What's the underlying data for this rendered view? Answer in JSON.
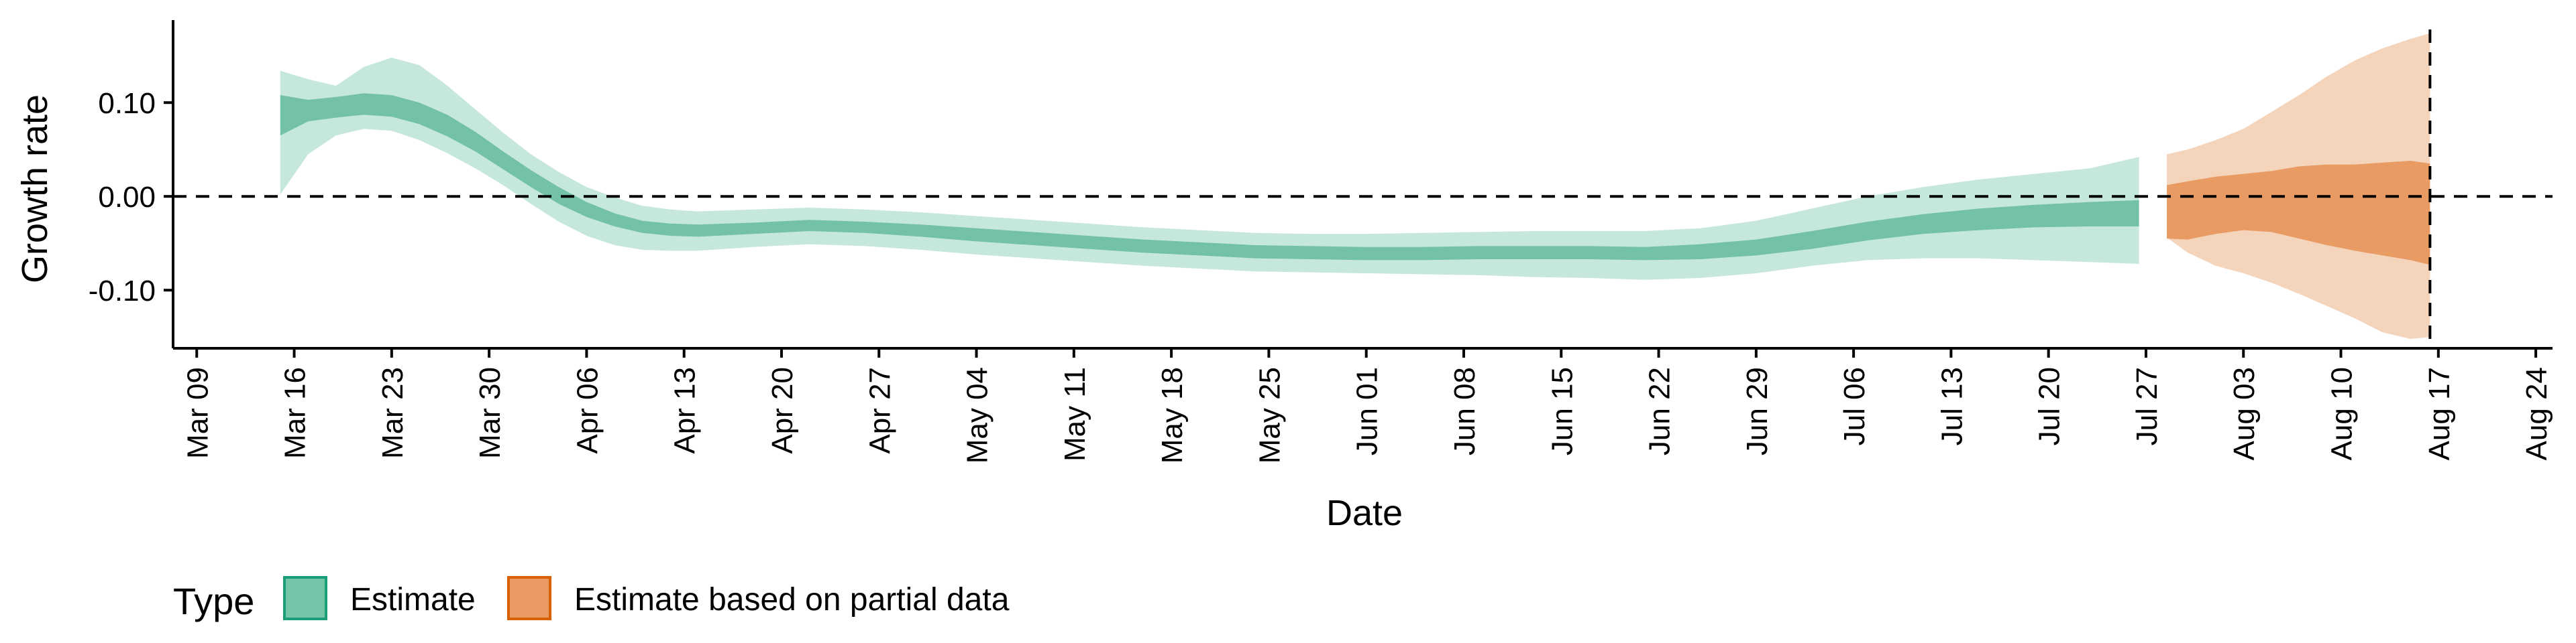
{
  "chart_data": {
    "type": "area",
    "xlabel": "Date",
    "ylabel": "Growth rate",
    "y_ticks": [
      {
        "value": 0.1,
        "label": "0.10"
      },
      {
        "value": 0.0,
        "label": "0.00"
      },
      {
        "value": -0.1,
        "label": "-0.10"
      }
    ],
    "ylim": [
      -0.162,
      0.188
    ],
    "x_ticks": [
      {
        "day": 0,
        "label": "Mar 09"
      },
      {
        "day": 7,
        "label": "Mar 16"
      },
      {
        "day": 14,
        "label": "Mar 23"
      },
      {
        "day": 21,
        "label": "Mar 30"
      },
      {
        "day": 28,
        "label": "Apr 06"
      },
      {
        "day": 35,
        "label": "Apr 13"
      },
      {
        "day": 42,
        "label": "Apr 20"
      },
      {
        "day": 49,
        "label": "Apr 27"
      },
      {
        "day": 56,
        "label": "May 04"
      },
      {
        "day": 63,
        "label": "May 11"
      },
      {
        "day": 70,
        "label": "May 18"
      },
      {
        "day": 77,
        "label": "May 25"
      },
      {
        "day": 84,
        "label": "Jun 01"
      },
      {
        "day": 91,
        "label": "Jun 08"
      },
      {
        "day": 98,
        "label": "Jun 15"
      },
      {
        "day": 105,
        "label": "Jun 22"
      },
      {
        "day": 112,
        "label": "Jun 29"
      },
      {
        "day": 119,
        "label": "Jul 06"
      },
      {
        "day": 126,
        "label": "Jul 13"
      },
      {
        "day": 133,
        "label": "Jul 20"
      },
      {
        "day": 140,
        "label": "Jul 27"
      },
      {
        "day": 147,
        "label": "Aug 03"
      },
      {
        "day": 154,
        "label": "Aug 10"
      },
      {
        "day": 161,
        "label": "Aug 17"
      },
      {
        "day": 168,
        "label": "Aug 24"
      }
    ],
    "xlim": [
      -1.7,
      169.2
    ],
    "reference_line_y": 0,
    "vertical_line_day": 160.4,
    "legend": {
      "title": "Type",
      "position": "bottom-left",
      "items": [
        {
          "label": "Estimate",
          "fill": "#74c4a8",
          "stroke": "#1b9e77"
        },
        {
          "label": "Estimate based on partial data",
          "fill": "#e89a62",
          "stroke": "#d95f02"
        }
      ]
    },
    "series": [
      {
        "name": "Estimate",
        "colors": {
          "inner": "#73c2a5",
          "outer": "#c6e7dc"
        },
        "x": [
          6,
          8,
          10,
          12,
          14,
          16,
          18,
          20,
          22,
          24,
          26,
          28,
          30,
          32,
          34,
          36,
          40,
          44,
          48,
          52,
          56,
          60,
          64,
          68,
          72,
          76,
          80,
          84,
          88,
          92,
          96,
          100,
          104,
          108,
          112,
          116,
          120,
          124,
          128,
          132,
          136,
          139.5
        ],
        "median": [
          0.085,
          0.092,
          0.095,
          0.098,
          0.096,
          0.088,
          0.075,
          0.058,
          0.038,
          0.018,
          0.0,
          -0.015,
          -0.026,
          -0.033,
          -0.036,
          -0.037,
          -0.034,
          -0.031,
          -0.033,
          -0.036,
          -0.041,
          -0.045,
          -0.049,
          -0.053,
          -0.056,
          -0.059,
          -0.06,
          -0.061,
          -0.061,
          -0.06,
          -0.06,
          -0.06,
          -0.061,
          -0.059,
          -0.055,
          -0.047,
          -0.037,
          -0.03,
          -0.025,
          -0.021,
          -0.019,
          -0.018
        ],
        "inner_lo": [
          0.065,
          0.08,
          0.084,
          0.087,
          0.085,
          0.077,
          0.064,
          0.048,
          0.029,
          0.01,
          -0.008,
          -0.022,
          -0.032,
          -0.039,
          -0.042,
          -0.043,
          -0.04,
          -0.037,
          -0.039,
          -0.043,
          -0.048,
          -0.052,
          -0.056,
          -0.06,
          -0.063,
          -0.066,
          -0.067,
          -0.068,
          -0.068,
          -0.067,
          -0.067,
          -0.067,
          -0.068,
          -0.067,
          -0.063,
          -0.056,
          -0.047,
          -0.04,
          -0.036,
          -0.033,
          -0.032,
          -0.032
        ],
        "inner_hi": [
          0.108,
          0.103,
          0.106,
          0.11,
          0.108,
          0.1,
          0.087,
          0.069,
          0.048,
          0.028,
          0.01,
          -0.006,
          -0.018,
          -0.026,
          -0.029,
          -0.03,
          -0.028,
          -0.025,
          -0.027,
          -0.03,
          -0.034,
          -0.038,
          -0.042,
          -0.046,
          -0.049,
          -0.052,
          -0.053,
          -0.054,
          -0.054,
          -0.053,
          -0.053,
          -0.053,
          -0.054,
          -0.051,
          -0.046,
          -0.037,
          -0.027,
          -0.019,
          -0.013,
          -0.009,
          -0.006,
          -0.004
        ],
        "outer_lo": [
          0.002,
          0.045,
          0.065,
          0.072,
          0.07,
          0.06,
          0.046,
          0.03,
          0.012,
          -0.008,
          -0.027,
          -0.042,
          -0.052,
          -0.057,
          -0.058,
          -0.058,
          -0.054,
          -0.051,
          -0.053,
          -0.057,
          -0.062,
          -0.066,
          -0.07,
          -0.074,
          -0.077,
          -0.08,
          -0.081,
          -0.082,
          -0.083,
          -0.084,
          -0.086,
          -0.087,
          -0.089,
          -0.087,
          -0.082,
          -0.074,
          -0.068,
          -0.066,
          -0.066,
          -0.068,
          -0.07,
          -0.072
        ],
        "outer_hi": [
          0.134,
          0.125,
          0.118,
          0.138,
          0.148,
          0.14,
          0.118,
          0.093,
          0.068,
          0.045,
          0.026,
          0.01,
          -0.001,
          -0.01,
          -0.014,
          -0.016,
          -0.014,
          -0.012,
          -0.014,
          -0.017,
          -0.021,
          -0.025,
          -0.029,
          -0.033,
          -0.036,
          -0.039,
          -0.04,
          -0.04,
          -0.039,
          -0.038,
          -0.037,
          -0.037,
          -0.037,
          -0.034,
          -0.026,
          -0.013,
          0.0,
          0.01,
          0.018,
          0.024,
          0.03,
          0.042
        ]
      },
      {
        "name": "Estimate based on partial data",
        "colors": {
          "inner": "#e89b62",
          "outer": "#f5d4bc"
        },
        "x": [
          141.5,
          143,
          145,
          147,
          149,
          151,
          153,
          155,
          157,
          159,
          160.4
        ],
        "median": [
          -0.012,
          -0.01,
          -0.008,
          -0.006,
          -0.006,
          -0.008,
          -0.01,
          -0.012,
          -0.014,
          -0.016,
          -0.018
        ],
        "inner_lo": [
          -0.045,
          -0.046,
          -0.04,
          -0.036,
          -0.038,
          -0.045,
          -0.052,
          -0.058,
          -0.063,
          -0.068,
          -0.073
        ],
        "inner_hi": [
          0.012,
          0.016,
          0.021,
          0.024,
          0.027,
          0.032,
          0.034,
          0.034,
          0.036,
          0.038,
          0.035
        ],
        "outer_lo": [
          -0.044,
          -0.06,
          -0.074,
          -0.082,
          -0.092,
          -0.104,
          -0.117,
          -0.13,
          -0.145,
          -0.152,
          -0.15
        ],
        "outer_hi": [
          0.045,
          0.05,
          0.06,
          0.072,
          0.09,
          0.108,
          0.128,
          0.145,
          0.158,
          0.168,
          0.174
        ]
      }
    ]
  }
}
